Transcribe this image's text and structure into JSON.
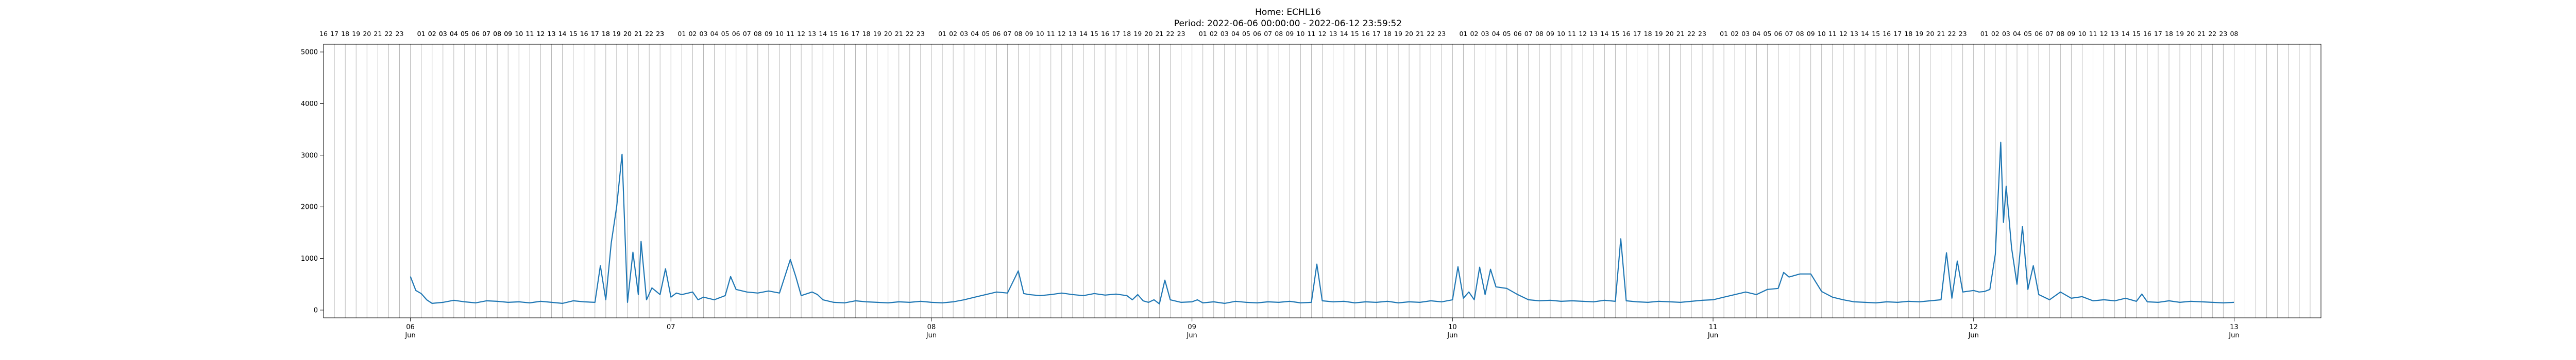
{
  "chart_data": {
    "type": "line",
    "title": "Home: ECHL16",
    "subtitle": "Period: 2022-06-06 00:00:00 - 2022-06-12 23:59:52",
    "xlabel": "",
    "ylabel": "",
    "x_range": [
      "2022-06-05 16:00",
      "2022-06-13 08:00"
    ],
    "ylim": [
      -150,
      5150
    ],
    "y_ticks": [
      0,
      1000,
      2000,
      3000,
      4000,
      5000
    ],
    "x_major_ticks": [
      {
        "time": "2022-06-06 00:00",
        "day": "06",
        "month": "Jun"
      },
      {
        "time": "2022-06-07 00:00",
        "day": "07",
        "month": ""
      },
      {
        "time": "2022-06-08 00:00",
        "day": "08",
        "month": "Jun"
      },
      {
        "time": "2022-06-09 00:00",
        "day": "09",
        "month": "Jun"
      },
      {
        "time": "2022-06-10 00:00",
        "day": "10",
        "month": "Jun"
      },
      {
        "time": "2022-06-11 00:00",
        "day": "11",
        "month": "Jun"
      },
      {
        "time": "2022-06-12 00:00",
        "day": "12",
        "month": "Jun"
      },
      {
        "time": "2022-06-13 00:00",
        "day": "13",
        "month": "Jun"
      }
    ],
    "top_hour_labels": [
      "16",
      "17",
      "18",
      "19",
      "20",
      "21",
      "22",
      "23",
      "",
      "01",
      "02",
      "03",
      "04",
      "05",
      "06",
      "07",
      "08",
      "09",
      "10",
      "11",
      "12",
      "13",
      "14",
      "15",
      "16",
      "17",
      "18",
      "19",
      "20",
      "21",
      "22",
      "23"
    ],
    "top_hour_labels_last_day": [
      "",
      "01",
      "02",
      "03",
      "04",
      "05",
      "06",
      "07",
      "08"
    ],
    "grid": "vertical hourly lines",
    "legend": "none",
    "series": [
      {
        "color": "#1f77b4",
        "points": [
          [
            "2022-06-06 00:00",
            650
          ],
          [
            "2022-06-06 00:30",
            380
          ],
          [
            "2022-06-06 01:00",
            320
          ],
          [
            "2022-06-06 01:30",
            200
          ],
          [
            "2022-06-06 02:00",
            130
          ],
          [
            "2022-06-06 03:00",
            150
          ],
          [
            "2022-06-06 04:00",
            190
          ],
          [
            "2022-06-06 05:00",
            160
          ],
          [
            "2022-06-06 06:00",
            140
          ],
          [
            "2022-06-06 07:00",
            180
          ],
          [
            "2022-06-06 08:00",
            170
          ],
          [
            "2022-06-06 09:00",
            150
          ],
          [
            "2022-06-06 10:00",
            160
          ],
          [
            "2022-06-06 11:00",
            140
          ],
          [
            "2022-06-06 12:00",
            170
          ],
          [
            "2022-06-06 13:00",
            150
          ],
          [
            "2022-06-06 14:00",
            130
          ],
          [
            "2022-06-06 15:00",
            180
          ],
          [
            "2022-06-06 16:00",
            160
          ],
          [
            "2022-06-06 17:00",
            150
          ],
          [
            "2022-06-06 17:30",
            860
          ],
          [
            "2022-06-06 18:00",
            200
          ],
          [
            "2022-06-06 18:30",
            1300
          ],
          [
            "2022-06-06 19:00",
            2000
          ],
          [
            "2022-06-06 19:30",
            3020
          ],
          [
            "2022-06-06 20:00",
            150
          ],
          [
            "2022-06-06 20:30",
            1120
          ],
          [
            "2022-06-06 21:00",
            300
          ],
          [
            "2022-06-06 21:15",
            1330
          ],
          [
            "2022-06-06 21:45",
            200
          ],
          [
            "2022-06-06 22:15",
            430
          ],
          [
            "2022-06-06 23:00",
            300
          ],
          [
            "2022-06-06 23:30",
            800
          ],
          [
            "2022-06-07 00:00",
            250
          ],
          [
            "2022-06-07 00:30",
            330
          ],
          [
            "2022-06-07 01:00",
            300
          ],
          [
            "2022-06-07 02:00",
            350
          ],
          [
            "2022-06-07 02:30",
            200
          ],
          [
            "2022-06-07 03:00",
            250
          ],
          [
            "2022-06-07 04:00",
            200
          ],
          [
            "2022-06-07 05:00",
            280
          ],
          [
            "2022-06-07 05:30",
            650
          ],
          [
            "2022-06-07 06:00",
            400
          ],
          [
            "2022-06-07 07:00",
            350
          ],
          [
            "2022-06-07 08:00",
            330
          ],
          [
            "2022-06-07 09:00",
            370
          ],
          [
            "2022-06-07 10:00",
            330
          ],
          [
            "2022-06-07 11:00",
            980
          ],
          [
            "2022-06-07 11:30",
            650
          ],
          [
            "2022-06-07 12:00",
            280
          ],
          [
            "2022-06-07 13:00",
            350
          ],
          [
            "2022-06-07 13:30",
            300
          ],
          [
            "2022-06-07 14:00",
            200
          ],
          [
            "2022-06-07 15:00",
            150
          ],
          [
            "2022-06-07 16:00",
            140
          ],
          [
            "2022-06-07 17:00",
            180
          ],
          [
            "2022-06-07 18:00",
            160
          ],
          [
            "2022-06-07 19:00",
            150
          ],
          [
            "2022-06-07 20:00",
            140
          ],
          [
            "2022-06-07 21:00",
            160
          ],
          [
            "2022-06-07 22:00",
            150
          ],
          [
            "2022-06-07 23:00",
            170
          ],
          [
            "2022-06-08 00:00",
            150
          ],
          [
            "2022-06-08 01:00",
            140
          ],
          [
            "2022-06-08 02:00",
            160
          ],
          [
            "2022-06-08 03:00",
            200
          ],
          [
            "2022-06-08 04:00",
            250
          ],
          [
            "2022-06-08 05:00",
            300
          ],
          [
            "2022-06-08 06:00",
            350
          ],
          [
            "2022-06-08 07:00",
            330
          ],
          [
            "2022-06-08 08:00",
            760
          ],
          [
            "2022-06-08 08:30",
            320
          ],
          [
            "2022-06-08 09:00",
            300
          ],
          [
            "2022-06-08 10:00",
            280
          ],
          [
            "2022-06-08 11:00",
            300
          ],
          [
            "2022-06-08 12:00",
            330
          ],
          [
            "2022-06-08 13:00",
            300
          ],
          [
            "2022-06-08 14:00",
            280
          ],
          [
            "2022-06-08 15:00",
            320
          ],
          [
            "2022-06-08 16:00",
            290
          ],
          [
            "2022-06-08 17:00",
            310
          ],
          [
            "2022-06-08 18:00",
            280
          ],
          [
            "2022-06-08 18:30",
            200
          ],
          [
            "2022-06-08 19:00",
            300
          ],
          [
            "2022-06-08 19:30",
            180
          ],
          [
            "2022-06-08 20:00",
            150
          ],
          [
            "2022-06-08 20:30",
            200
          ],
          [
            "2022-06-08 21:00",
            120
          ],
          [
            "2022-06-08 21:30",
            580
          ],
          [
            "2022-06-08 22:00",
            200
          ],
          [
            "2022-06-08 23:00",
            150
          ],
          [
            "2022-06-09 00:00",
            160
          ],
          [
            "2022-06-09 00:30",
            200
          ],
          [
            "2022-06-09 01:00",
            140
          ],
          [
            "2022-06-09 02:00",
            160
          ],
          [
            "2022-06-09 03:00",
            130
          ],
          [
            "2022-06-09 04:00",
            170
          ],
          [
            "2022-06-09 05:00",
            150
          ],
          [
            "2022-06-09 06:00",
            140
          ],
          [
            "2022-06-09 07:00",
            160
          ],
          [
            "2022-06-09 08:00",
            150
          ],
          [
            "2022-06-09 09:00",
            170
          ],
          [
            "2022-06-09 10:00",
            140
          ],
          [
            "2022-06-09 11:00",
            150
          ],
          [
            "2022-06-09 11:30",
            890
          ],
          [
            "2022-06-09 12:00",
            180
          ],
          [
            "2022-06-09 13:00",
            160
          ],
          [
            "2022-06-09 14:00",
            170
          ],
          [
            "2022-06-09 15:00",
            140
          ],
          [
            "2022-06-09 16:00",
            160
          ],
          [
            "2022-06-09 17:00",
            150
          ],
          [
            "2022-06-09 18:00",
            170
          ],
          [
            "2022-06-09 19:00",
            140
          ],
          [
            "2022-06-09 20:00",
            160
          ],
          [
            "2022-06-09 21:00",
            150
          ],
          [
            "2022-06-09 22:00",
            180
          ],
          [
            "2022-06-09 23:00",
            160
          ],
          [
            "2022-06-10 00:00",
            200
          ],
          [
            "2022-06-10 00:30",
            840
          ],
          [
            "2022-06-10 01:00",
            230
          ],
          [
            "2022-06-10 01:30",
            350
          ],
          [
            "2022-06-10 02:00",
            200
          ],
          [
            "2022-06-10 02:30",
            830
          ],
          [
            "2022-06-10 03:00",
            300
          ],
          [
            "2022-06-10 03:30",
            790
          ],
          [
            "2022-06-10 04:00",
            450
          ],
          [
            "2022-06-10 05:00",
            420
          ],
          [
            "2022-06-10 06:00",
            300
          ],
          [
            "2022-06-10 07:00",
            200
          ],
          [
            "2022-06-10 08:00",
            180
          ],
          [
            "2022-06-10 09:00",
            190
          ],
          [
            "2022-06-10 10:00",
            170
          ],
          [
            "2022-06-10 11:00",
            180
          ],
          [
            "2022-06-10 12:00",
            170
          ],
          [
            "2022-06-10 13:00",
            160
          ],
          [
            "2022-06-10 14:00",
            190
          ],
          [
            "2022-06-10 15:00",
            170
          ],
          [
            "2022-06-10 15:30",
            1380
          ],
          [
            "2022-06-10 16:00",
            180
          ],
          [
            "2022-06-10 17:00",
            160
          ],
          [
            "2022-06-10 18:00",
            150
          ],
          [
            "2022-06-10 19:00",
            170
          ],
          [
            "2022-06-10 20:00",
            160
          ],
          [
            "2022-06-10 21:00",
            150
          ],
          [
            "2022-06-10 22:00",
            170
          ],
          [
            "2022-06-10 23:00",
            190
          ],
          [
            "2022-06-11 00:00",
            200
          ],
          [
            "2022-06-11 01:00",
            250
          ],
          [
            "2022-06-11 02:00",
            300
          ],
          [
            "2022-06-11 03:00",
            350
          ],
          [
            "2022-06-11 04:00",
            300
          ],
          [
            "2022-06-11 05:00",
            400
          ],
          [
            "2022-06-11 06:00",
            420
          ],
          [
            "2022-06-11 06:30",
            730
          ],
          [
            "2022-06-11 07:00",
            640
          ],
          [
            "2022-06-11 08:00",
            700
          ],
          [
            "2022-06-11 09:00",
            700
          ],
          [
            "2022-06-11 10:00",
            360
          ],
          [
            "2022-06-11 11:00",
            250
          ],
          [
            "2022-06-11 12:00",
            200
          ],
          [
            "2022-06-11 13:00",
            160
          ],
          [
            "2022-06-11 14:00",
            150
          ],
          [
            "2022-06-11 15:00",
            140
          ],
          [
            "2022-06-11 16:00",
            160
          ],
          [
            "2022-06-11 17:00",
            150
          ],
          [
            "2022-06-11 18:00",
            170
          ],
          [
            "2022-06-11 19:00",
            160
          ],
          [
            "2022-06-11 20:00",
            180
          ],
          [
            "2022-06-11 21:00",
            200
          ],
          [
            "2022-06-11 21:30",
            1110
          ],
          [
            "2022-06-11 22:00",
            230
          ],
          [
            "2022-06-11 22:30",
            950
          ],
          [
            "2022-06-11 23:00",
            350
          ],
          [
            "2022-06-12 00:00",
            380
          ],
          [
            "2022-06-12 00:30",
            350
          ],
          [
            "2022-06-12 01:00",
            360
          ],
          [
            "2022-06-12 01:30",
            400
          ],
          [
            "2022-06-12 02:00",
            1080
          ],
          [
            "2022-06-12 02:30",
            3250
          ],
          [
            "2022-06-12 02:45",
            1700
          ],
          [
            "2022-06-12 03:00",
            2400
          ],
          [
            "2022-06-12 03:30",
            1200
          ],
          [
            "2022-06-12 04:00",
            500
          ],
          [
            "2022-06-12 04:30",
            1620
          ],
          [
            "2022-06-12 05:00",
            400
          ],
          [
            "2022-06-12 05:30",
            860
          ],
          [
            "2022-06-12 06:00",
            300
          ],
          [
            "2022-06-12 07:00",
            200
          ],
          [
            "2022-06-12 08:00",
            350
          ],
          [
            "2022-06-12 09:00",
            230
          ],
          [
            "2022-06-12 10:00",
            260
          ],
          [
            "2022-06-12 11:00",
            180
          ],
          [
            "2022-06-12 12:00",
            200
          ],
          [
            "2022-06-12 13:00",
            180
          ],
          [
            "2022-06-12 14:00",
            230
          ],
          [
            "2022-06-12 15:00",
            170
          ],
          [
            "2022-06-12 15:30",
            310
          ],
          [
            "2022-06-12 16:00",
            160
          ],
          [
            "2022-06-12 17:00",
            150
          ],
          [
            "2022-06-12 18:00",
            180
          ],
          [
            "2022-06-12 19:00",
            150
          ],
          [
            "2022-06-12 20:00",
            170
          ],
          [
            "2022-06-12 21:00",
            160
          ],
          [
            "2022-06-12 22:00",
            150
          ],
          [
            "2022-06-12 23:00",
            140
          ],
          [
            "2022-06-12 23:59",
            150
          ]
        ]
      }
    ]
  }
}
